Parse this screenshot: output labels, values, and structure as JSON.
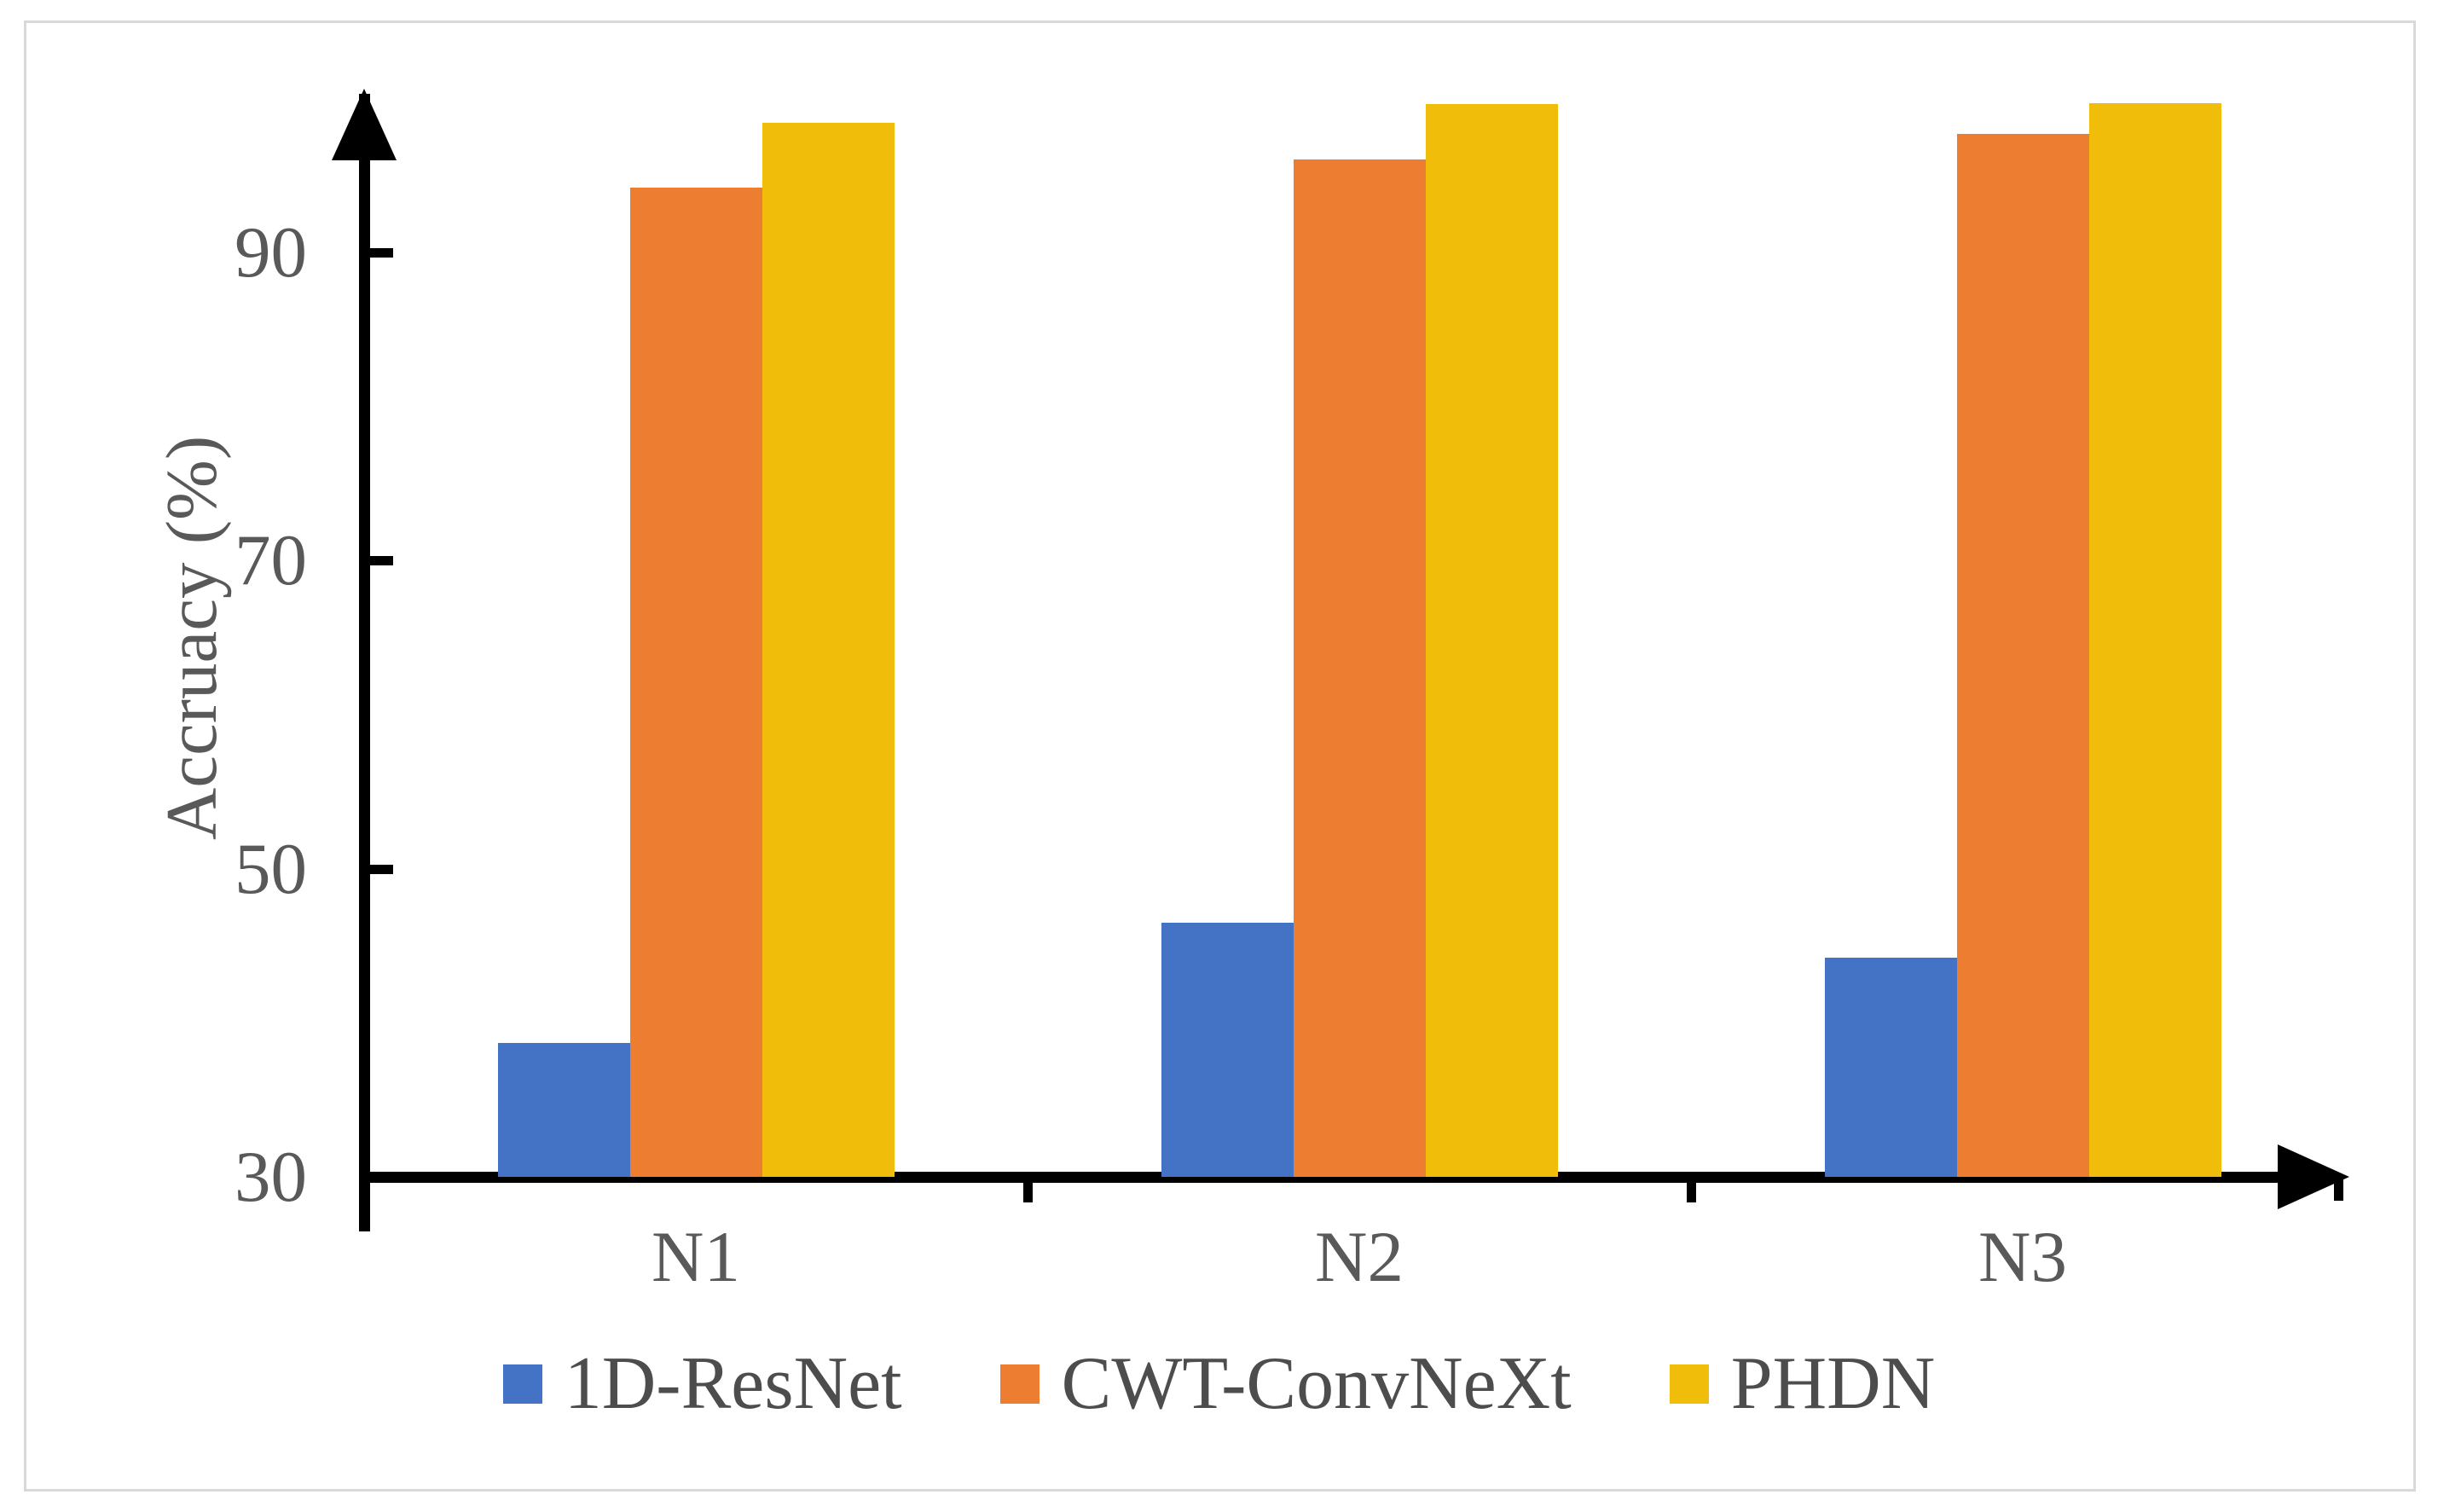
{
  "figure": {
    "background": "#ffffff",
    "frame_border_color": "#d9d9d9",
    "axis_color": "#000000",
    "tick_label_color": "#595959"
  },
  "chart_data": {
    "type": "bar",
    "title": "",
    "xlabel": "",
    "ylabel": "Accruacy (%)",
    "categories": [
      "N1",
      "N2",
      "N3"
    ],
    "series": [
      {
        "name": "1D-ResNet",
        "color": "#4472C4",
        "values": [
          38.7,
          46.5,
          44.2
        ]
      },
      {
        "name": "CWT-ConvNeXt",
        "color": "#ED7D31",
        "values": [
          94.2,
          96.0,
          97.7
        ]
      },
      {
        "name": "PHDN",
        "color": "#F0BD0B",
        "values": [
          98.4,
          99.6,
          99.7
        ]
      }
    ],
    "y_ticks": [
      30,
      50,
      70,
      90
    ],
    "ylim": [
      30,
      100
    ],
    "grid": false,
    "legend_position": "bottom"
  }
}
